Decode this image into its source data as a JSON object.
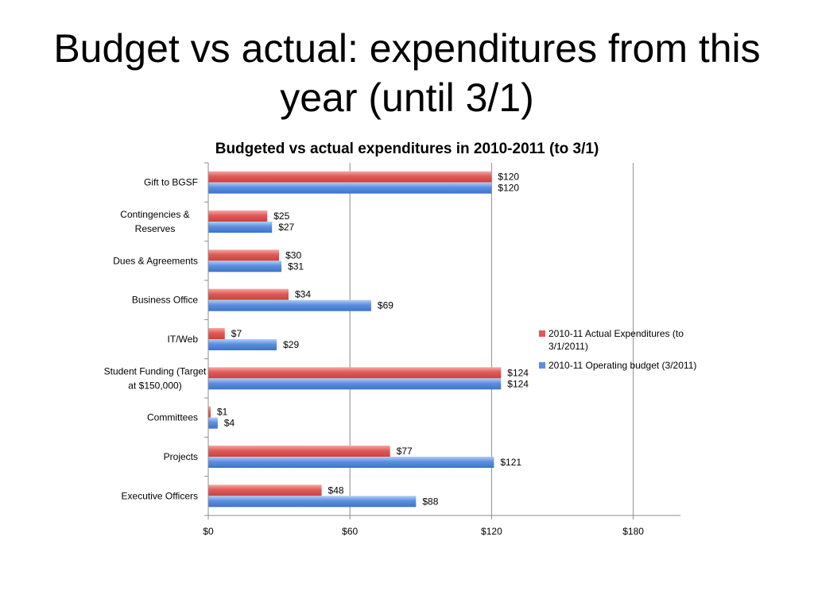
{
  "slide": {
    "title": "Budget vs actual: expenditures from this year (until 3/1)"
  },
  "chart_data": {
    "type": "bar",
    "orientation": "horizontal",
    "title": "Budgeted vs actual expenditures in 2010-2011 (to 3/1)",
    "categories": [
      "Gift to BGSF",
      "Contingencies  & Reserves",
      "Dues & Agreements",
      "Business Office",
      "IT/Web",
      "Student Funding (Target at $150,000)",
      "Committees",
      "Projects",
      "Executive Officers"
    ],
    "series": [
      {
        "name": "2010-11 Actual Expenditures (to 3/1/2011)",
        "color": "#e05a57",
        "values": [
          120,
          25,
          30,
          34,
          7,
          124,
          1,
          77,
          48
        ],
        "labels": [
          "$120",
          "$25",
          "$30",
          "$34",
          "$7",
          "$124",
          "$1",
          "$77",
          "$48"
        ]
      },
      {
        "name": "2010-11 Operating budget (3/2011)",
        "color": "#5b8fe0",
        "values": [
          120,
          27,
          31,
          69,
          29,
          124,
          4,
          121,
          88
        ],
        "labels": [
          "$120",
          "$27",
          "$31",
          "$69",
          "$29",
          "$124",
          "$4",
          "$121",
          "$88"
        ]
      }
    ],
    "xlim": [
      0,
      200
    ],
    "xticks": [
      0,
      60,
      120,
      180
    ],
    "xtick_labels": [
      "$0",
      "$60",
      "$120",
      "$180"
    ],
    "grid": true,
    "legend_position": "right"
  }
}
